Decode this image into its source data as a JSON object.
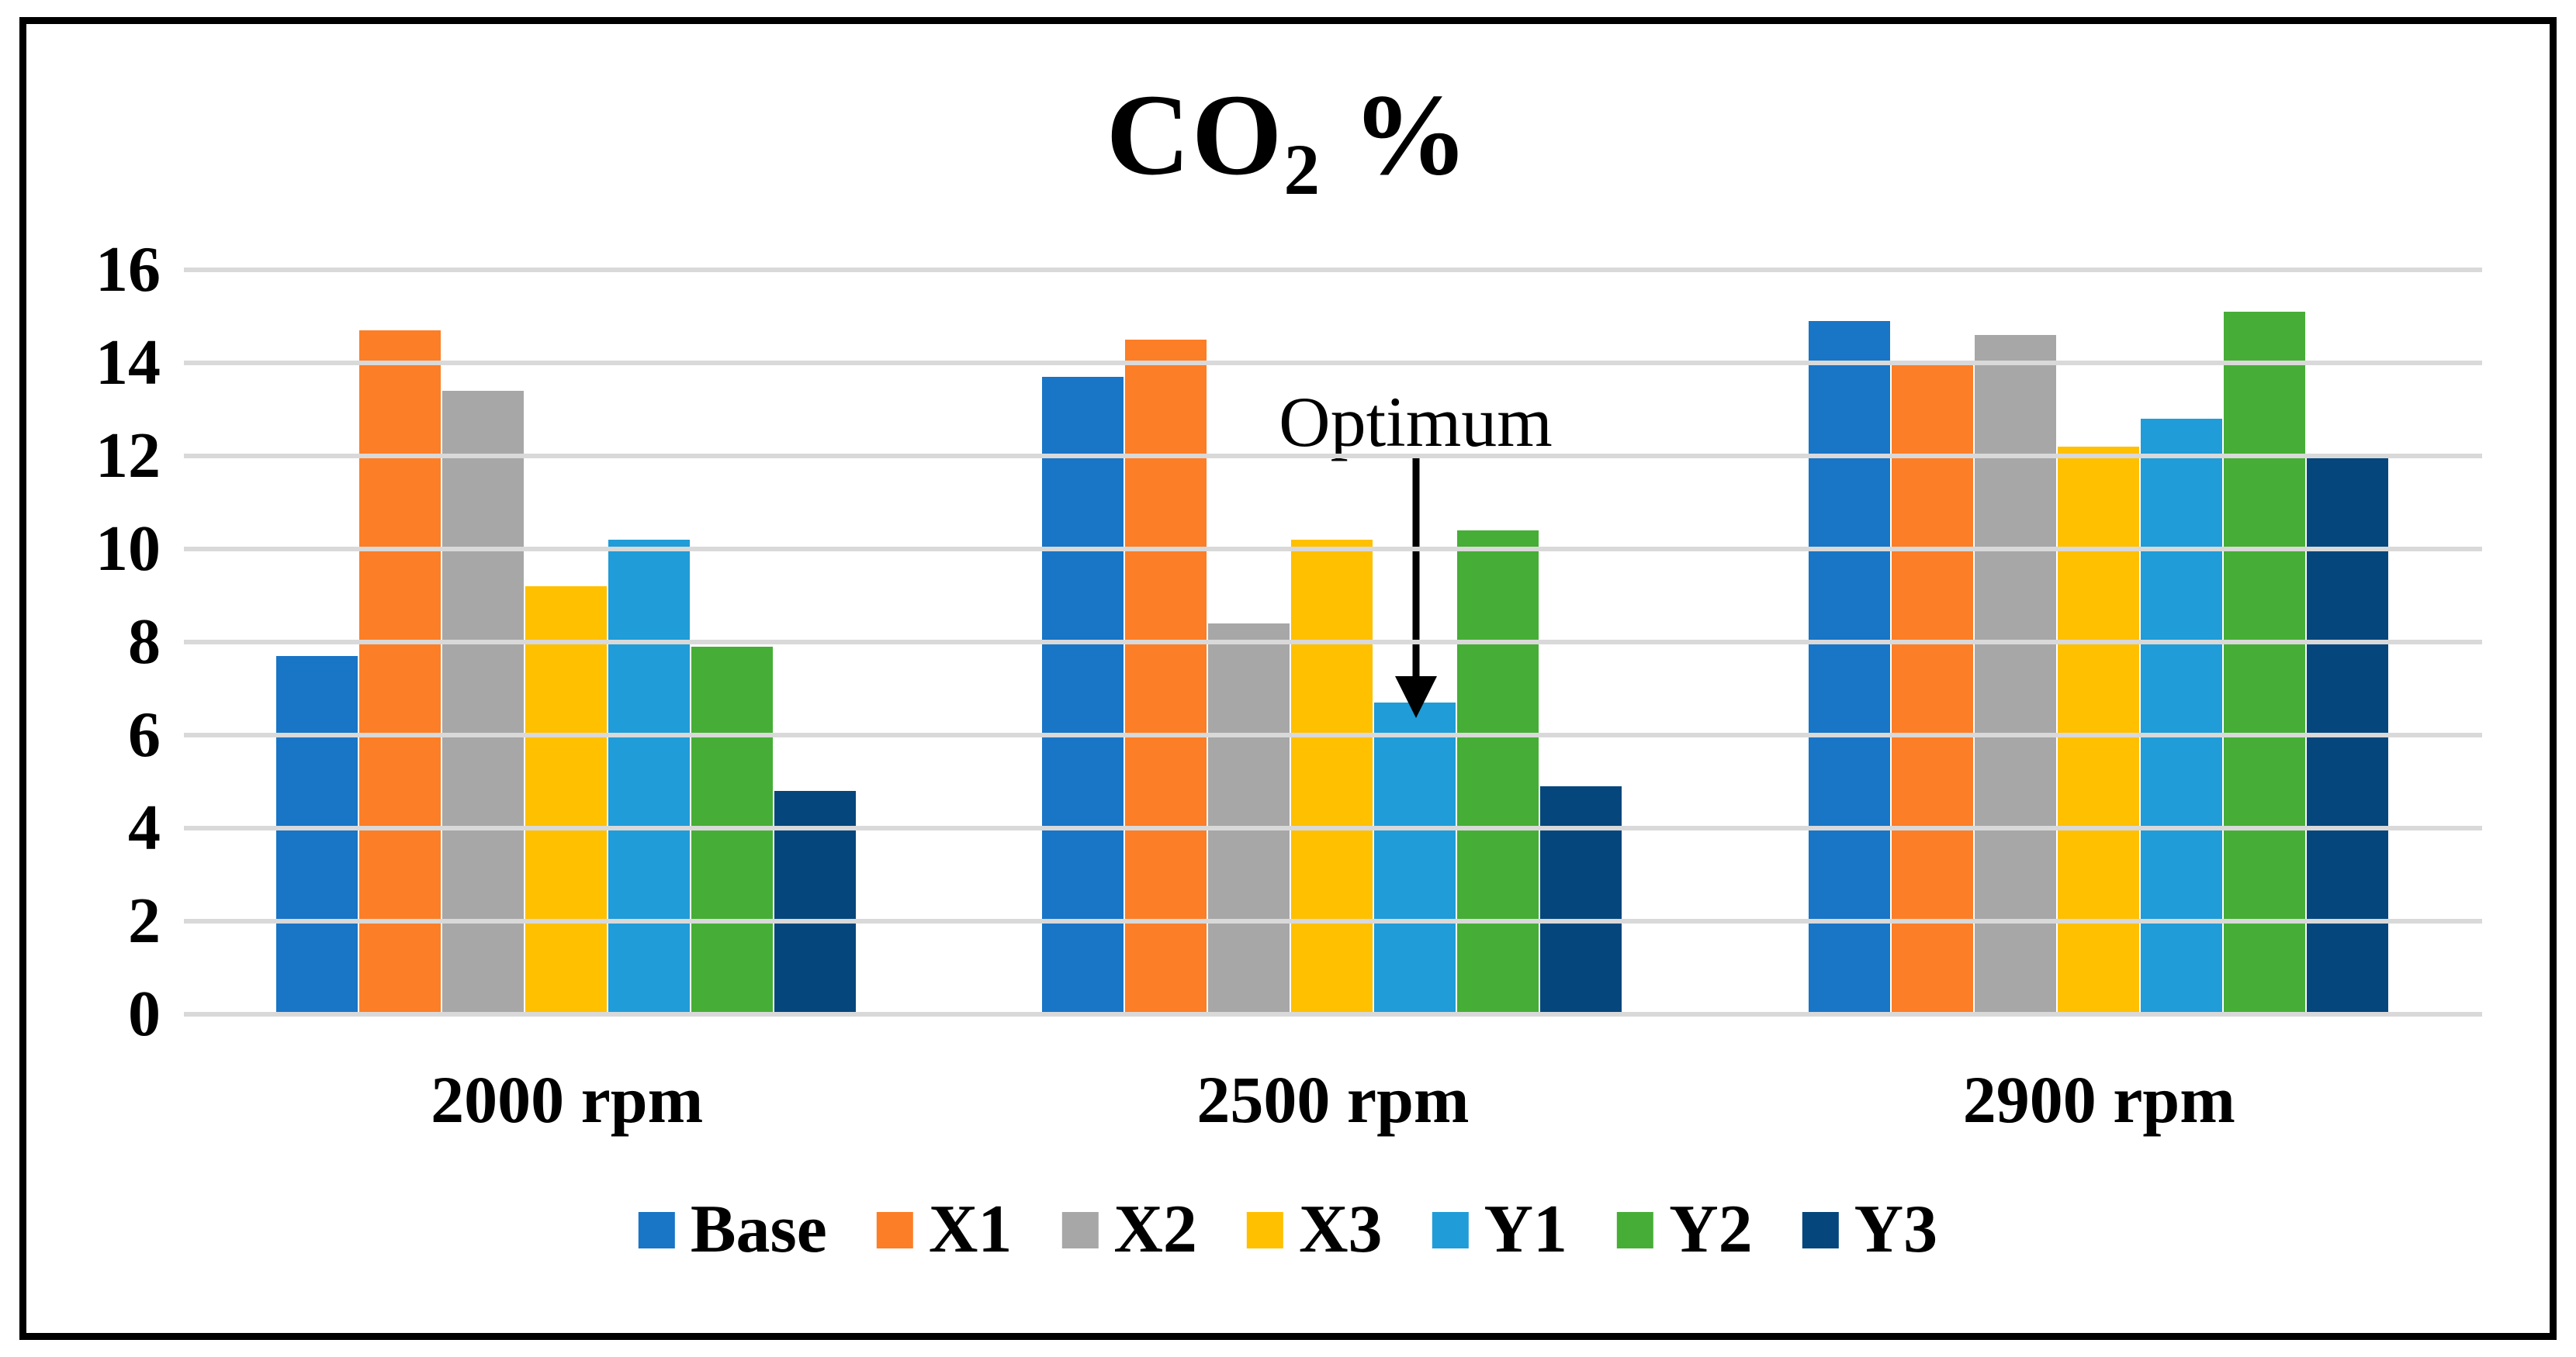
{
  "figure": {
    "title_prefix": "CO",
    "title_sub": "2",
    "title_suffix": " %"
  },
  "chart_data": {
    "type": "bar",
    "title": "CO2 %",
    "categories": [
      "2000 rpm",
      "2500 rpm",
      "2900 rpm"
    ],
    "series": [
      {
        "name": "Base",
        "color": "#1975C6",
        "values": [
          7.7,
          13.7,
          14.9
        ]
      },
      {
        "name": "X1",
        "color": "#FC7E27",
        "values": [
          14.7,
          14.5,
          14.0
        ]
      },
      {
        "name": "X2",
        "color": "#A7A7A7",
        "values": [
          13.4,
          8.4,
          14.6
        ]
      },
      {
        "name": "X3",
        "color": "#FFC000",
        "values": [
          9.2,
          10.2,
          12.2
        ]
      },
      {
        "name": "Y1",
        "color": "#209CD8",
        "values": [
          10.2,
          6.7,
          12.8
        ]
      },
      {
        "name": "Y2",
        "color": "#46AE36",
        "values": [
          7.9,
          10.4,
          15.1
        ]
      },
      {
        "name": "Y3",
        "color": "#05467C",
        "values": [
          4.8,
          4.9,
          12.0
        ]
      }
    ],
    "ylim": [
      0,
      16
    ],
    "yticks": [
      0,
      2,
      4,
      6,
      8,
      10,
      12,
      14,
      16
    ],
    "grid": true,
    "gridline_color": "#D9D9D9",
    "legend_position": "bottom",
    "annotation": {
      "text": "Optimum",
      "target_series": "Y1",
      "target_category": "2500 rpm",
      "target_value": 6.7
    }
  },
  "colors": {
    "background": "#FFFFFF",
    "border": "#000000",
    "text": "#000000",
    "gridline": "#D9D9D9"
  }
}
